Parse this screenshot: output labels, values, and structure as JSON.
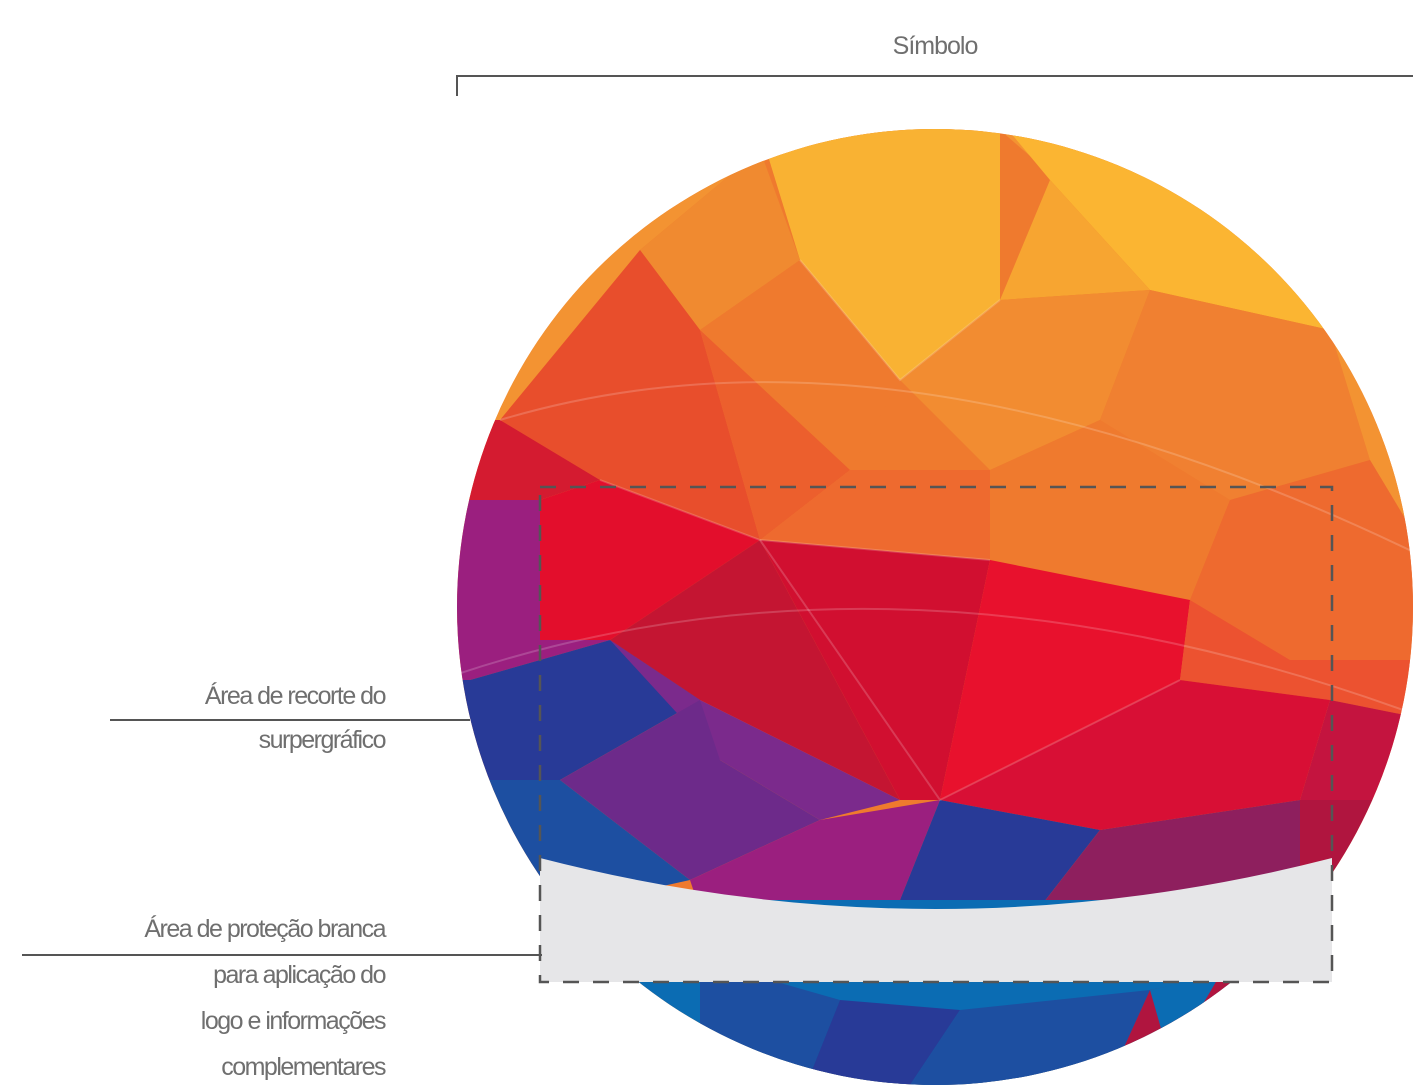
{
  "labels": {
    "symbol": "Símbolo",
    "crop_area": {
      "line1": "Área de recorte do",
      "line2": "surpergráfico"
    },
    "protection_area": {
      "line1": "Área de proteção branca",
      "line2": "para aplicação do",
      "line3": "logo e informações",
      "line4": "complementares"
    }
  },
  "colors": {
    "leader_line": "#555555",
    "dashed_frame": "#555555",
    "protection_band": "#e6e6e8",
    "sphere_palette": [
      "#f9b233",
      "#f39332",
      "#ef7a2e",
      "#e84e2c",
      "#e30e2c",
      "#cc0d3a",
      "#9b1f7f",
      "#7b2a8c",
      "#283a97",
      "#1d4fa1",
      "#0b6cb3"
    ]
  },
  "icons": {
    "sphere": "faceted-color-sphere-graphic"
  }
}
